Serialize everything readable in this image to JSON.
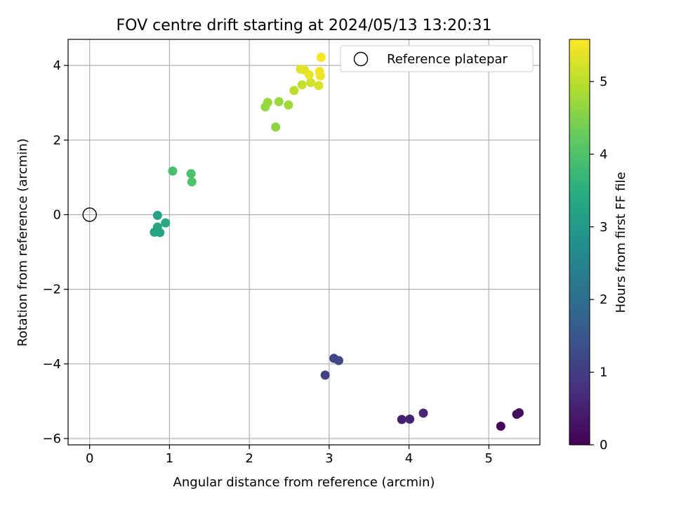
{
  "chart_data": {
    "type": "scatter",
    "title": "FOV centre drift starting at 2024/05/13 13:20:31",
    "xlabel": "Angular distance from reference (arcmin)",
    "ylabel": "Rotation from reference (arcmin)",
    "xlim": [
      -0.27,
      5.64
    ],
    "ylim": [
      -6.17,
      4.7
    ],
    "x_ticks": [
      0,
      1,
      2,
      3,
      4,
      5
    ],
    "y_ticks": [
      -6,
      -4,
      -2,
      0,
      2,
      4
    ],
    "x_tick_labels": [
      "0",
      "1",
      "2",
      "3",
      "4",
      "5"
    ],
    "y_tick_labels": [
      "−6",
      "−4",
      "−2",
      "0",
      "2",
      "4"
    ],
    "grid": true,
    "legend": {
      "position": "top-right",
      "entries": [
        {
          "label": "Reference platepar",
          "marker": "open-circle"
        }
      ]
    },
    "colorbar": {
      "label": "Hours from first FF file",
      "range": [
        0,
        5.58
      ],
      "ticks": [
        0,
        1,
        2,
        3,
        4,
        5
      ],
      "tick_labels": [
        "0",
        "1",
        "2",
        "3",
        "4",
        "5"
      ],
      "colormap": "viridis"
    },
    "reference_point": {
      "x": 0,
      "y": 0,
      "label": "Reference platepar"
    },
    "points": [
      {
        "x": 5.15,
        "y": -5.67,
        "hours": 0.05
      },
      {
        "x": 5.35,
        "y": -5.35,
        "hours": 0.15
      },
      {
        "x": 5.38,
        "y": -5.31,
        "hours": 0.2
      },
      {
        "x": 3.91,
        "y": -5.49,
        "hours": 0.5
      },
      {
        "x": 4.01,
        "y": -5.48,
        "hours": 0.55
      },
      {
        "x": 4.18,
        "y": -5.32,
        "hours": 0.6
      },
      {
        "x": 2.95,
        "y": -4.3,
        "hours": 1.1
      },
      {
        "x": 3.06,
        "y": -3.85,
        "hours": 1.15
      },
      {
        "x": 3.12,
        "y": -3.91,
        "hours": 1.2
      },
      {
        "x": 0.85,
        "y": -0.02,
        "hours": 3.2
      },
      {
        "x": 0.81,
        "y": -0.47,
        "hours": 3.25
      },
      {
        "x": 0.85,
        "y": -0.33,
        "hours": 3.3
      },
      {
        "x": 0.88,
        "y": -0.48,
        "hours": 3.3
      },
      {
        "x": 0.95,
        "y": -0.22,
        "hours": 3.35
      },
      {
        "x": 1.04,
        "y": 1.17,
        "hours": 3.9
      },
      {
        "x": 1.27,
        "y": 1.1,
        "hours": 3.95
      },
      {
        "x": 1.28,
        "y": 0.88,
        "hours": 4.0
      },
      {
        "x": 2.33,
        "y": 2.35,
        "hours": 4.6
      },
      {
        "x": 2.2,
        "y": 2.89,
        "hours": 4.65
      },
      {
        "x": 2.23,
        "y": 3.01,
        "hours": 4.7
      },
      {
        "x": 2.37,
        "y": 3.03,
        "hours": 4.72
      },
      {
        "x": 2.49,
        "y": 2.94,
        "hours": 4.75
      },
      {
        "x": 2.56,
        "y": 3.33,
        "hours": 5.0
      },
      {
        "x": 2.66,
        "y": 3.48,
        "hours": 5.1
      },
      {
        "x": 2.77,
        "y": 3.54,
        "hours": 5.2
      },
      {
        "x": 2.87,
        "y": 3.46,
        "hours": 5.25
      },
      {
        "x": 2.64,
        "y": 3.9,
        "hours": 5.3
      },
      {
        "x": 2.69,
        "y": 3.88,
        "hours": 5.35
      },
      {
        "x": 2.75,
        "y": 3.75,
        "hours": 5.4
      },
      {
        "x": 2.88,
        "y": 3.84,
        "hours": 5.45
      },
      {
        "x": 2.89,
        "y": 3.72,
        "hours": 5.45
      },
      {
        "x": 2.9,
        "y": 4.22,
        "hours": 5.55
      }
    ]
  }
}
